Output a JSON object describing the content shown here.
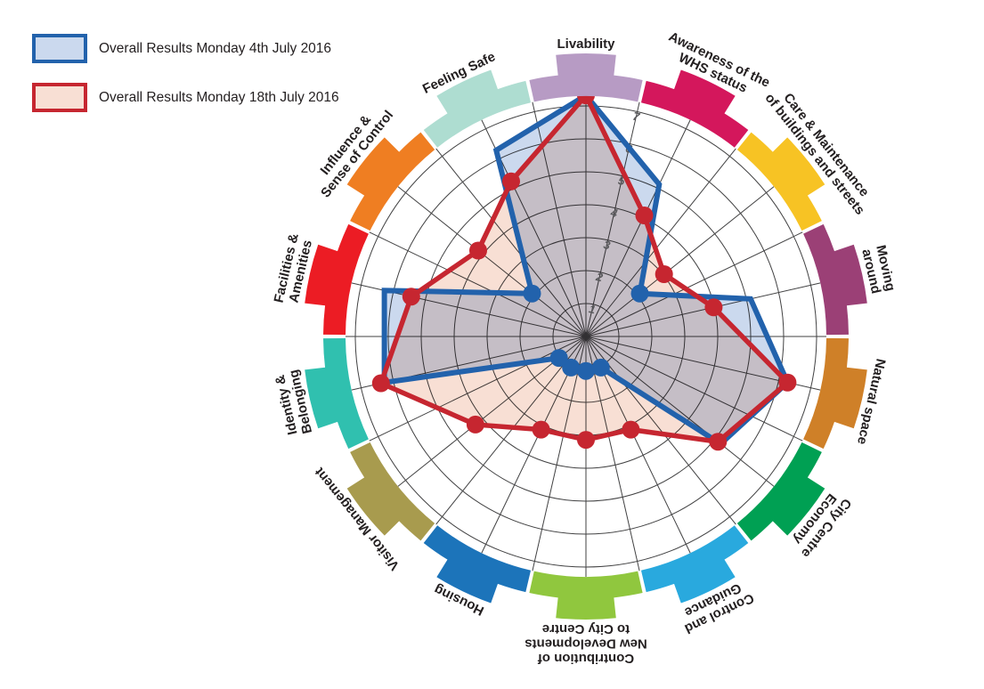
{
  "legend": {
    "items": [
      {
        "label": "Overall Results Monday 4th July 2016",
        "fill": "#CBD9EE",
        "stroke": "#2262AC"
      },
      {
        "label": "Overall Results Monday 18th July 2016",
        "fill": "#F8DFD4",
        "stroke": "#C62630"
      }
    ]
  },
  "chart_data": {
    "type": "radar",
    "axis_range": [
      0,
      7
    ],
    "tick_labels": [
      "1",
      "2",
      "3",
      "4",
      "5",
      "6",
      "7"
    ],
    "grid": {
      "rings": 7,
      "spokes": 28,
      "color": "#414142"
    },
    "tick_color": "#5A5A5D",
    "label_color": "#231F20",
    "legend_position": "top-left",
    "categories": [
      {
        "label": [
          "Livability"
        ],
        "color": "#B79BC4"
      },
      {
        "label": [
          "Awareness of the",
          "WHS status"
        ],
        "color": "#D4175C"
      },
      {
        "label": [
          "Care & Maintenance",
          "of buildings and streets"
        ],
        "color": "#F7C324"
      },
      {
        "label": [
          "Moving",
          "around"
        ],
        "color": "#9B4076"
      },
      {
        "label": [
          "Natural space"
        ],
        "color": "#CF8028"
      },
      {
        "label": [
          "City Centre",
          "Economy"
        ],
        "color": "#00A053"
      },
      {
        "label": [
          "Control and",
          "Guidance"
        ],
        "color": "#29A9DE"
      },
      {
        "label": [
          "Contribution of",
          "New Developments",
          "to City Centre"
        ],
        "color": "#90C73E"
      },
      {
        "label": [
          "Housing"
        ],
        "color": "#1C74BA"
      },
      {
        "label": [
          "Visitor Management"
        ],
        "color": "#A89B4E"
      },
      {
        "label": [
          "Identity &",
          "Belonging"
        ],
        "color": "#30C0AF"
      },
      {
        "label": [
          "Facilities &",
          "Amenities"
        ],
        "color": "#EC1C24"
      },
      {
        "label": [
          "Influence &",
          "Sense of Control"
        ],
        "color": "#EF7E22"
      },
      {
        "label": [
          "Feeling Safe"
        ],
        "color": "#AEDDD1"
      }
    ],
    "series": [
      {
        "name": "Overall Results Monday 4th July 2016",
        "stroke": "#2262AC",
        "fill": "#CBD9EE",
        "values": [
          7,
          4.9,
          2,
          4.9,
          6,
          5,
          1,
          1,
          1,
          1,
          6,
          6,
          2,
          6
        ],
        "dot_axes": [
          2,
          6,
          7,
          8,
          9,
          12
        ]
      },
      {
        "name": "Overall Results Monday 18th July 2016",
        "stroke": "#C62630",
        "fill": "#F8DFD4",
        "values": [
          7,
          3.9,
          2.9,
          3.8,
          6,
          4.9,
          3,
          3,
          3,
          4.1,
          6.1,
          5.2,
          4,
          5
        ],
        "dot_axes": [
          0,
          1,
          2,
          3,
          4,
          5,
          6,
          7,
          8,
          9,
          10,
          11,
          12,
          13
        ]
      }
    ]
  }
}
